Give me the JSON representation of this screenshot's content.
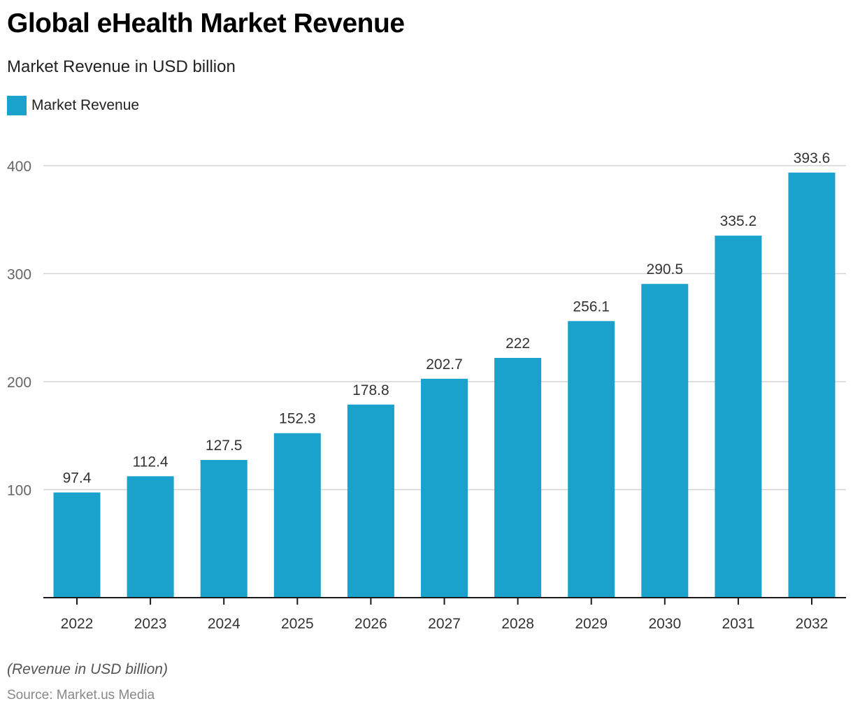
{
  "title": "Global eHealth Market Revenue",
  "subtitle": "Market Revenue in USD billion",
  "note": "(Revenue in USD billion)",
  "source": "Source: Market.us Media",
  "colors": {
    "bar": "#1aa1cc",
    "grid": "#d3d3d3",
    "axis": "#1a1a1a",
    "tick_label": "#666666",
    "data_label": "#333333"
  },
  "chart_data": {
    "type": "bar",
    "title": "Global eHealth Market Revenue",
    "subtitle": "Market Revenue in USD billion",
    "xlabel": "",
    "ylabel": "",
    "categories": [
      "2022",
      "2023",
      "2024",
      "2025",
      "2026",
      "2027",
      "2028",
      "2029",
      "2030",
      "2031",
      "2032"
    ],
    "series": [
      {
        "name": "Market Revenue",
        "values": [
          97.4,
          112.4,
          127.5,
          152.3,
          178.8,
          202.7,
          222,
          256.1,
          290.5,
          335.2,
          393.6
        ],
        "labels": [
          "97.4",
          "112.4",
          "127.5",
          "152.3",
          "178.8",
          "202.7",
          "222",
          "256.1",
          "290.5",
          "335.2",
          "393.6"
        ]
      }
    ],
    "ylim": [
      0,
      400
    ],
    "yticks": [
      100,
      200,
      300,
      400
    ],
    "ytick_labels": [
      "100",
      "200",
      "300",
      "400"
    ],
    "grid": true,
    "legend": {
      "entries": [
        "Market Revenue"
      ],
      "position": "top-left"
    }
  }
}
